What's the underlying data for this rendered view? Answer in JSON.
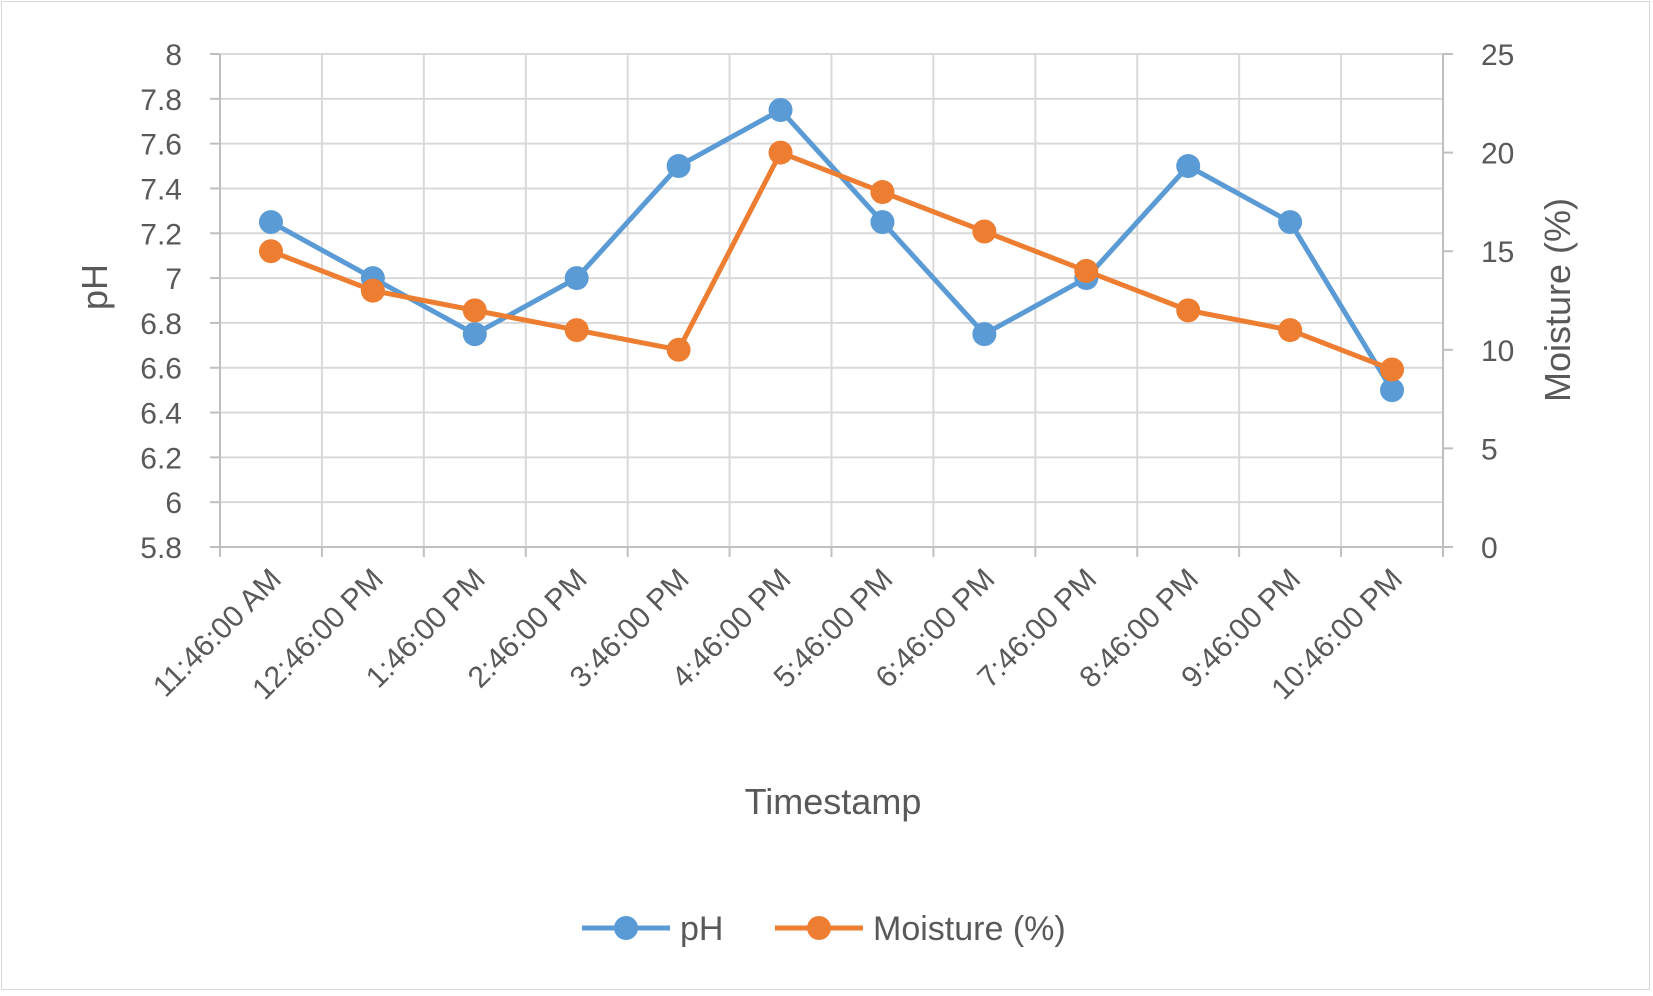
{
  "chart_data": {
    "type": "line",
    "categories": [
      "11:46:00 AM",
      "12:46:00 PM",
      "1:46:00 PM",
      "2:46:00 PM",
      "3:46:00 PM",
      "4:46:00 PM",
      "5:46:00 PM",
      "6:46:00 PM",
      "7:46:00 PM",
      "8:46:00 PM",
      "9:46:00 PM",
      "10:46:00 PM"
    ],
    "series": [
      {
        "name": "pH",
        "axis": "left",
        "color": "#5b9bd5",
        "values": [
          7.25,
          7.0,
          6.75,
          7.0,
          7.5,
          7.75,
          7.25,
          6.75,
          7.0,
          7.5,
          7.25,
          6.5
        ]
      },
      {
        "name": "Moisture (%)",
        "axis": "right",
        "color": "#ed7d31",
        "values": [
          15,
          13,
          12,
          11,
          10,
          20,
          18,
          16,
          14,
          12,
          11,
          9
        ]
      }
    ],
    "xlabel": "Timestamp",
    "ylabel": "pH",
    "ylabel_right": "Moisture (%)",
    "ylim": [
      5.8,
      8
    ],
    "yticks": [
      "8",
      "7.8",
      "7.6",
      "7.4",
      "7.2",
      "7",
      "6.8",
      "6.6",
      "6.4",
      "6.2",
      "6",
      "5.8"
    ],
    "ylim_right": [
      0,
      25
    ],
    "yticks_right": [
      "25",
      "20",
      "15",
      "10",
      "5",
      "0"
    ],
    "grid": true,
    "legend_position": "bottom"
  }
}
